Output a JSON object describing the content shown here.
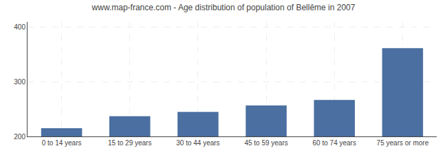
{
  "chart_data": {
    "type": "bar",
    "title": "www.map-france.com - Age distribution of population of Bellême in 2007",
    "categories": [
      "0 to 14 years",
      "15 to 29 years",
      "30 to 44 years",
      "45 to 59 years",
      "60 to 74 years",
      "75 years or more"
    ],
    "values": [
      215,
      237,
      245,
      257,
      267,
      362
    ],
    "color": "#4a6fa0",
    "ylim": [
      200,
      410
    ],
    "yticks": [
      200,
      300,
      400
    ],
    "grid": true
  }
}
